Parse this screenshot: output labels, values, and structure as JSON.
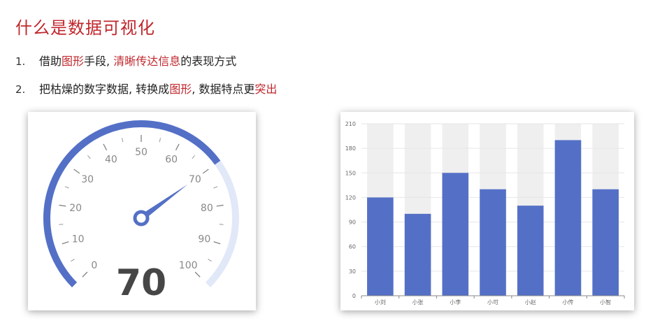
{
  "page": {
    "title": "什么是数据可视化",
    "items": [
      {
        "number": "1.",
        "parts": [
          {
            "text": "借助",
            "highlight": false
          },
          {
            "text": "图形",
            "highlight": true
          },
          {
            "text": "手段, ",
            "highlight": false
          },
          {
            "text": "清晰传达信息",
            "highlight": true
          },
          {
            "text": "的表现方式",
            "highlight": false
          }
        ]
      },
      {
        "number": "2.",
        "parts": [
          {
            "text": "把枯燥的数字数据, 转换成",
            "highlight": false
          },
          {
            "text": "图形",
            "highlight": true
          },
          {
            "text": ", 数据特点更",
            "highlight": false
          },
          {
            "text": "突出",
            "highlight": true
          }
        ]
      }
    ]
  },
  "colors": {
    "accent": "#c0272d",
    "bar": "#5470c6",
    "gauge_track": "#e1e8f8",
    "band": "#efefef"
  },
  "gauge_data": {
    "type": "gauge",
    "min": 0,
    "max": 100,
    "value": 70,
    "tick_labels": [
      "0",
      "10",
      "20",
      "30",
      "40",
      "50",
      "60",
      "70",
      "80",
      "90",
      "100"
    ],
    "value_label": "70"
  },
  "chart_data": {
    "type": "bar",
    "categories": [
      "小刘",
      "小张",
      "小李",
      "小可",
      "小赵",
      "小传",
      "小智"
    ],
    "values": [
      120,
      100,
      150,
      130,
      110,
      190,
      130
    ],
    "ylim": [
      0,
      210
    ],
    "yticks": [
      "0",
      "30",
      "60",
      "90",
      "120",
      "150",
      "180",
      "210"
    ],
    "grid": true,
    "background_bands": true
  }
}
